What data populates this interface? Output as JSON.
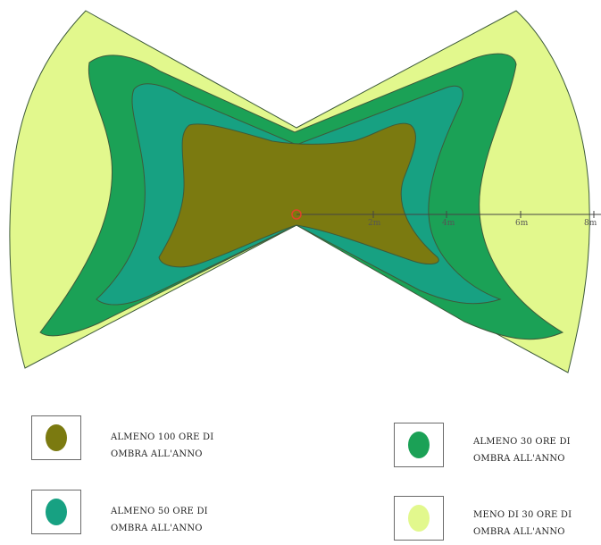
{
  "colors": {
    "zone_100": "#7b7a10",
    "zone_50": "#17a182",
    "zone_30": "#1ba156",
    "zone_less30": "#e2f88d",
    "outline": "#3d5a3a",
    "axis": "#444444",
    "origin": "#e0442a"
  },
  "axis": {
    "ticks": [
      "2m",
      "4m",
      "6m",
      "8m"
    ]
  },
  "legend": [
    {
      "id": "zone-100",
      "label_line1": "ALMENO 100 ORE DI",
      "label_line2": "OMBRA ALL'ANNO",
      "color_key": "zone_100",
      "icon": "olive-dot-icon"
    },
    {
      "id": "zone-50",
      "label_line1": "ALMENO 50 ORE DI",
      "label_line2": "OMBRA ALL'ANNO",
      "color_key": "zone_50",
      "icon": "teal-dot-icon"
    },
    {
      "id": "zone-30",
      "label_line1": "ALMENO 30 ORE DI",
      "label_line2": "OMBRA ALL'ANNO",
      "color_key": "zone_30",
      "icon": "green-dot-icon"
    },
    {
      "id": "zone-less30",
      "label_line1": "MENO DI 30 ORE DI",
      "label_line2": "OMBRA ALL'ANNO",
      "color_key": "zone_less30",
      "icon": "yellow-dot-icon"
    }
  ]
}
